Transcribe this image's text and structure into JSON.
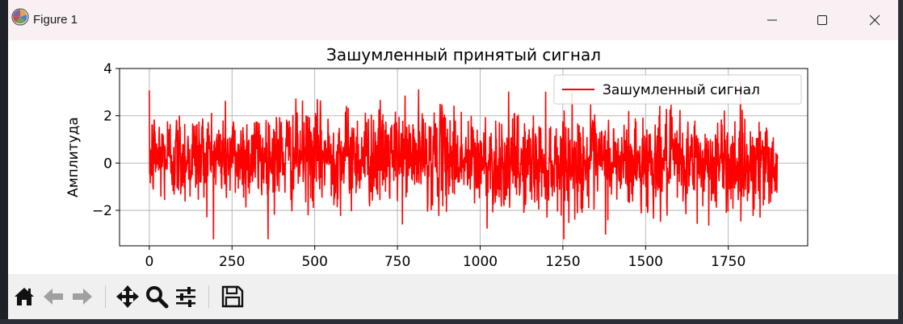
{
  "window": {
    "title": "Figure 1",
    "minimize_label": "—",
    "maximize_label": "",
    "close_label": "✕"
  },
  "toolbar": {
    "buttons": [
      {
        "name": "home-button",
        "icon": "home-icon"
      },
      {
        "name": "back-button",
        "icon": "arrow-left-icon"
      },
      {
        "name": "forward-button",
        "icon": "arrow-right-icon"
      },
      {
        "name": "pan-button",
        "icon": "move-icon"
      },
      {
        "name": "zoom-button",
        "icon": "magnifier-icon"
      },
      {
        "name": "configure-subplots-button",
        "icon": "sliders-icon"
      },
      {
        "name": "save-button",
        "icon": "floppy-disk-icon"
      }
    ]
  },
  "chart_data": {
    "type": "line",
    "title": "Зашумленный принятый сигнал",
    "xlabel": "",
    "ylabel": "Амплитуда",
    "xlim": [
      -90,
      1990
    ],
    "ylim": [
      -3.5,
      4
    ],
    "xticks": [
      0,
      250,
      500,
      750,
      1000,
      1250,
      1500,
      1750
    ],
    "yticks": [
      -2,
      0,
      2,
      4
    ],
    "xtick_labels": [
      "0",
      "250",
      "500",
      "750",
      "1000",
      "1250",
      "1500",
      "1750"
    ],
    "ytick_labels": [
      "−2",
      "0",
      "2",
      "4"
    ],
    "grid": true,
    "legend": {
      "position": "top-right",
      "entries": [
        "Зашумленный сигнал"
      ]
    },
    "series": [
      {
        "name": "Зашумленный сигнал",
        "color": "#ff0000",
        "n_points": 1900,
        "x_range": [
          0,
          1899
        ],
        "y_min": -3.2,
        "y_max": 3.7,
        "mean_first_half": 0.3,
        "mean_second_half": 0.0,
        "noise_std": 1.0
      }
    ]
  }
}
